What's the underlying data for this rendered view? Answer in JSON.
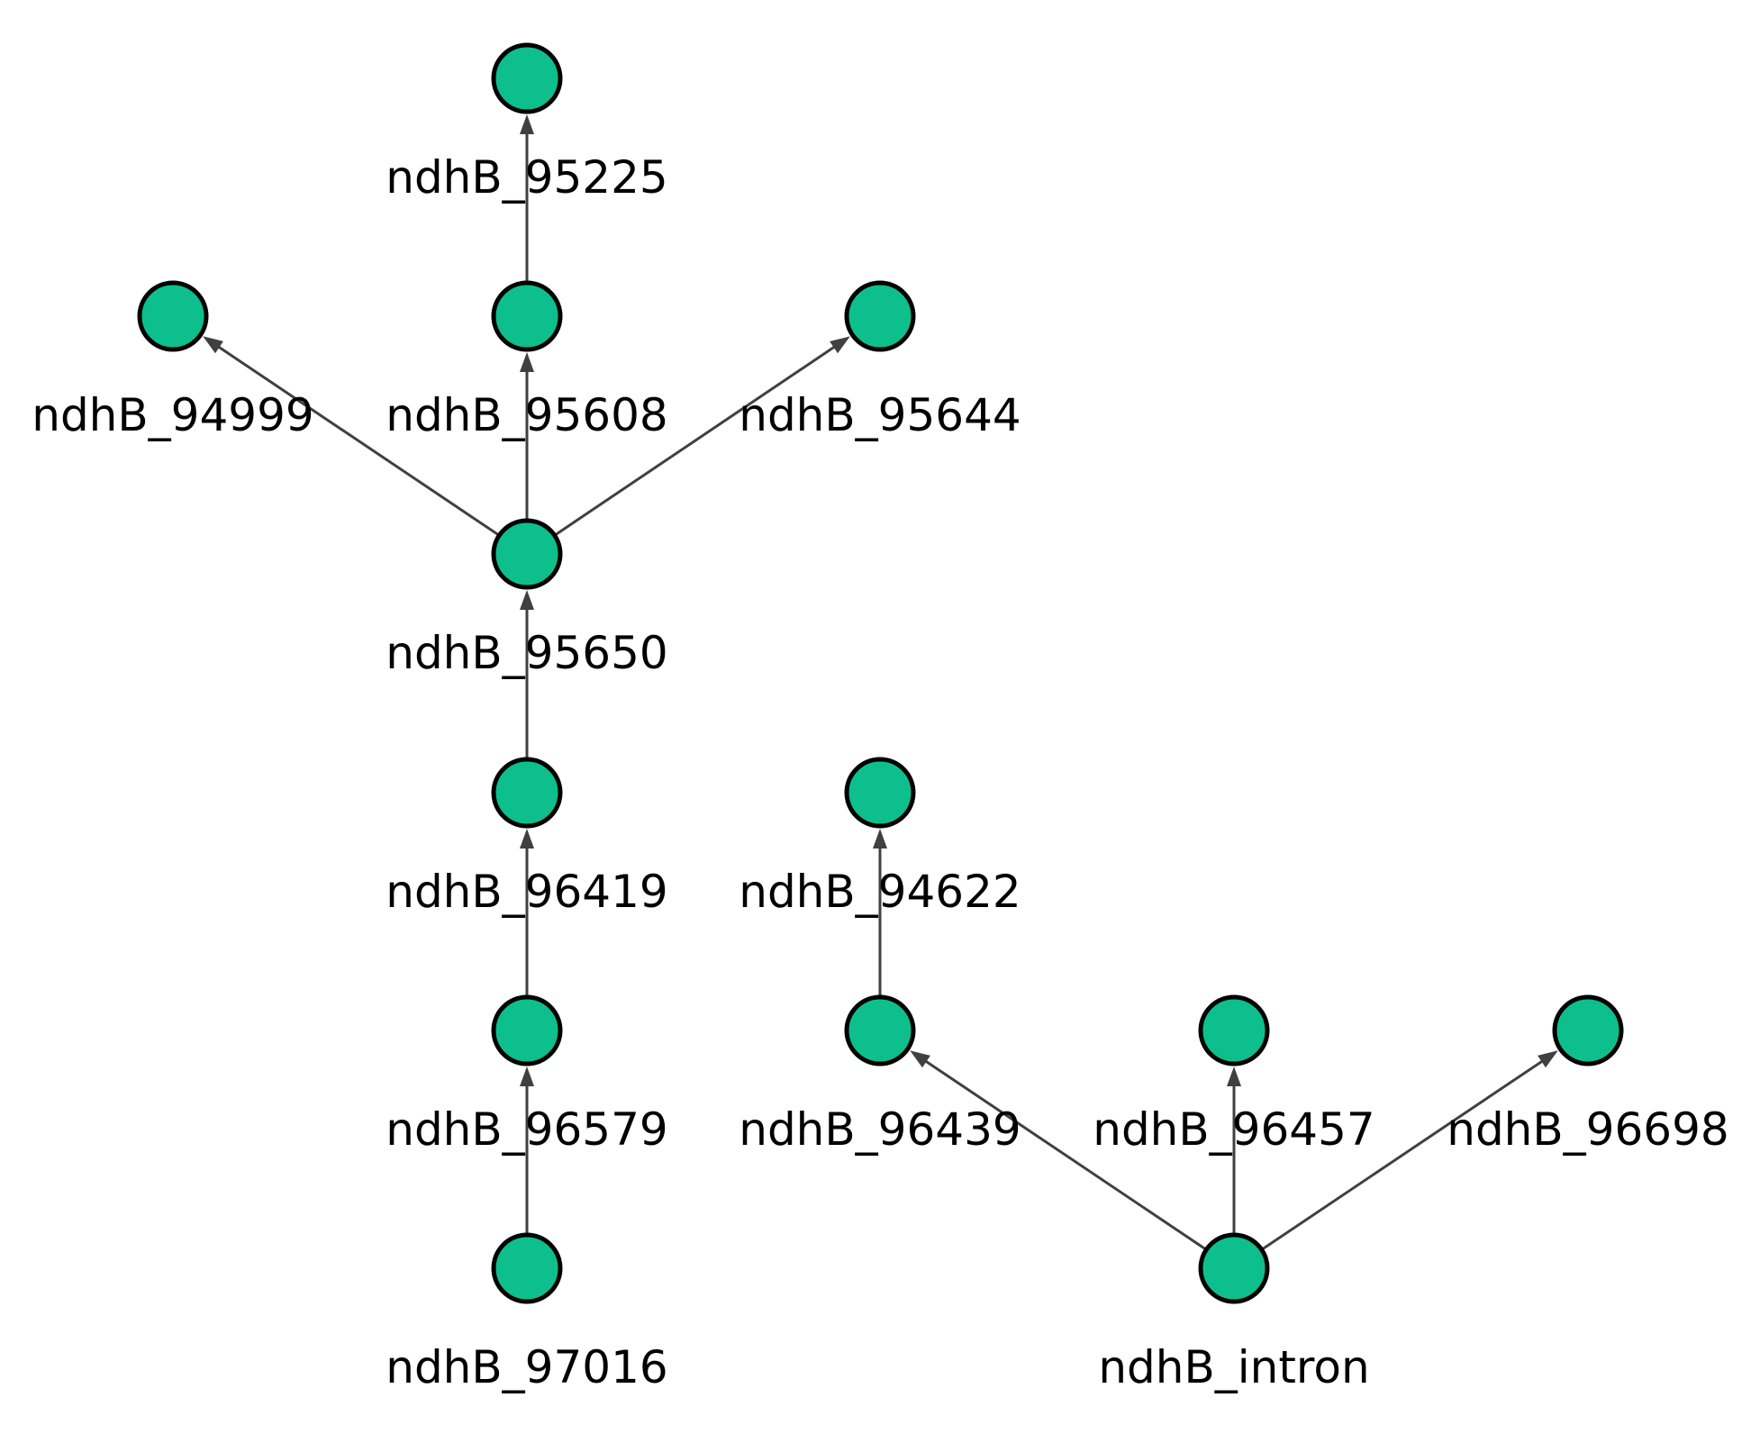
{
  "graph": {
    "directed": true,
    "colors": {
      "node_fill": "#0dbf8c",
      "node_stroke": "#000000",
      "edge": "#404040",
      "label": "#000000",
      "background": "#ffffff"
    },
    "nodes": [
      {
        "id": "ndhB_95225",
        "label": "ndhB_95225"
      },
      {
        "id": "ndhB_94999",
        "label": "ndhB_94999"
      },
      {
        "id": "ndhB_95608",
        "label": "ndhB_95608"
      },
      {
        "id": "ndhB_95644",
        "label": "ndhB_95644"
      },
      {
        "id": "ndhB_95650",
        "label": "ndhB_95650"
      },
      {
        "id": "ndhB_96419",
        "label": "ndhB_96419"
      },
      {
        "id": "ndhB_94622",
        "label": "ndhB_94622"
      },
      {
        "id": "ndhB_96579",
        "label": "ndhB_96579"
      },
      {
        "id": "ndhB_96439",
        "label": "ndhB_96439"
      },
      {
        "id": "ndhB_96457",
        "label": "ndhB_96457"
      },
      {
        "id": "ndhB_96698",
        "label": "ndhB_96698"
      },
      {
        "id": "ndhB_97016",
        "label": "ndhB_97016"
      },
      {
        "id": "ndhB_intron",
        "label": "ndhB_intron"
      }
    ],
    "edges": [
      {
        "from": "ndhB_95608",
        "to": "ndhB_95225"
      },
      {
        "from": "ndhB_95650",
        "to": "ndhB_94999"
      },
      {
        "from": "ndhB_95650",
        "to": "ndhB_95608"
      },
      {
        "from": "ndhB_95650",
        "to": "ndhB_95644"
      },
      {
        "from": "ndhB_96419",
        "to": "ndhB_95650"
      },
      {
        "from": "ndhB_96579",
        "to": "ndhB_96419"
      },
      {
        "from": "ndhB_97016",
        "to": "ndhB_96579"
      },
      {
        "from": "ndhB_96439",
        "to": "ndhB_94622"
      },
      {
        "from": "ndhB_intron",
        "to": "ndhB_96439"
      },
      {
        "from": "ndhB_intron",
        "to": "ndhB_96457"
      },
      {
        "from": "ndhB_intron",
        "to": "ndhB_96698"
      }
    ]
  }
}
